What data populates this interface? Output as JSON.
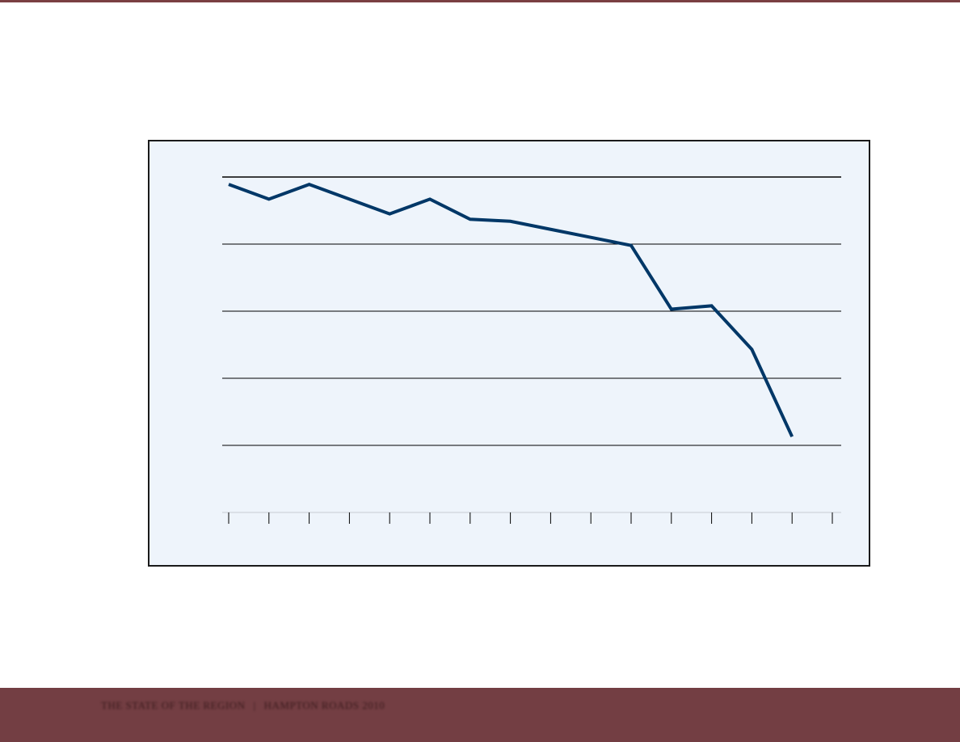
{
  "colors": {
    "top_bar": "#7a3f42",
    "footer": "#733e43",
    "panel_bg": "#eef4fb",
    "line": "#003767",
    "grid": "#000000"
  },
  "footer": {
    "title": "THE STATE OF THE REGION",
    "separator": "|",
    "subtitle": "HAMPTON ROADS 2010"
  },
  "chart_data": {
    "type": "line",
    "title": "",
    "xlabel": "",
    "ylabel": "",
    "x": [
      1,
      2,
      3,
      4,
      5,
      6,
      7,
      8,
      9,
      10,
      11,
      12,
      13,
      14,
      15
    ],
    "series": [
      {
        "values": [
          98.9,
          96.7,
          98.9,
          96.7,
          94.5,
          96.7,
          93.7,
          93.4,
          92.2,
          91.0,
          89.8,
          80.3,
          80.8,
          74.3,
          61.3
        ]
      }
    ],
    "ylim": [
      50,
      100
    ],
    "gridlines": [
      60,
      70,
      80,
      90,
      100
    ],
    "grid": true,
    "legend": "none"
  }
}
